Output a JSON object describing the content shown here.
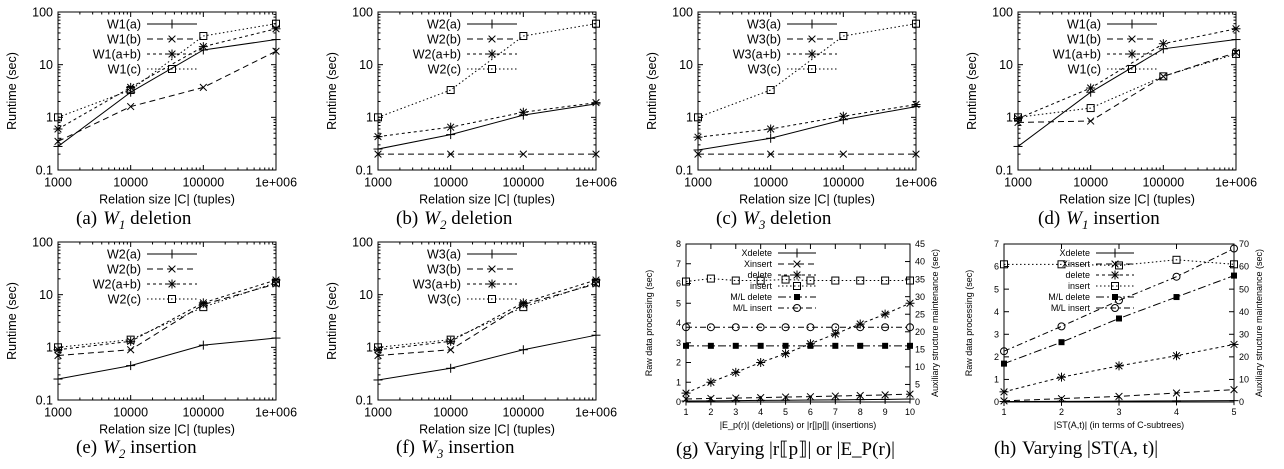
{
  "chart_data": [
    {
      "id": "a",
      "type": "line",
      "caption": {
        "label": "(a)",
        "var": "W",
        "sub": "1",
        "text": "deletion"
      },
      "xlabel": "Relation size |C| (tuples)",
      "ylabel": "Runtime (sec)",
      "xscale": "log",
      "yscale": "log",
      "xlim": [
        1000,
        1000000
      ],
      "ylim": [
        0.1,
        100
      ],
      "xticks": [
        "1000",
        "10000",
        "100000",
        "1e+006"
      ],
      "yticks": [
        "0.1",
        "1",
        "10",
        "100"
      ],
      "legend_position": "top-left",
      "x": [
        1000,
        10000,
        100000,
        1000000
      ],
      "series": [
        {
          "name": "W1(a)",
          "values": [
            0.28,
            3.0,
            19,
            30
          ]
        },
        {
          "name": "W1(b)",
          "values": [
            0.35,
            1.6,
            3.7,
            18
          ]
        },
        {
          "name": "W1(a+b)",
          "values": [
            0.6,
            3.7,
            22,
            48
          ]
        },
        {
          "name": "W1(c)",
          "values": [
            1.0,
            3.3,
            35,
            60
          ]
        }
      ]
    },
    {
      "id": "b",
      "type": "line",
      "caption": {
        "label": "(b)",
        "var": "W",
        "sub": "2",
        "text": "deletion"
      },
      "xlabel": "Relation size |C| (tuples)",
      "ylabel": "Runtime (sec)",
      "xscale": "log",
      "yscale": "log",
      "xlim": [
        1000,
        1000000
      ],
      "ylim": [
        0.1,
        100
      ],
      "xticks": [
        "1000",
        "10000",
        "100000",
        "1e+006"
      ],
      "yticks": [
        "0.1",
        "1",
        "10",
        "100"
      ],
      "legend_position": "top-left",
      "x": [
        1000,
        10000,
        100000,
        1000000
      ],
      "series": [
        {
          "name": "W2(a)",
          "values": [
            0.25,
            0.47,
            1.1,
            1.8
          ]
        },
        {
          "name": "W2(b)",
          "values": [
            0.2,
            0.2,
            0.2,
            0.2
          ]
        },
        {
          "name": "W2(a+b)",
          "values": [
            0.43,
            0.65,
            1.25,
            1.9
          ]
        },
        {
          "name": "W2(c)",
          "values": [
            1.0,
            3.3,
            35,
            60
          ]
        }
      ]
    },
    {
      "id": "c",
      "type": "line",
      "caption": {
        "label": "(c)",
        "var": "W",
        "sub": "3",
        "text": "deletion"
      },
      "xlabel": "Relation size |C| (tuples)",
      "ylabel": "Runtime (sec)",
      "xscale": "log",
      "yscale": "log",
      "xlim": [
        1000,
        1000000
      ],
      "ylim": [
        0.1,
        100
      ],
      "xticks": [
        "1000",
        "10000",
        "100000",
        "1e+006"
      ],
      "yticks": [
        "0.1",
        "1",
        "10",
        "100"
      ],
      "legend_position": "top-left",
      "x": [
        1000,
        10000,
        100000,
        1000000
      ],
      "series": [
        {
          "name": "W3(a)",
          "values": [
            0.24,
            0.4,
            0.9,
            1.6
          ]
        },
        {
          "name": "W3(b)",
          "values": [
            0.2,
            0.2,
            0.2,
            0.2
          ]
        },
        {
          "name": "W3(a+b)",
          "values": [
            0.42,
            0.6,
            1.05,
            1.75
          ]
        },
        {
          "name": "W3(c)",
          "values": [
            1.0,
            3.3,
            35,
            60
          ]
        }
      ]
    },
    {
      "id": "d",
      "type": "line",
      "caption": {
        "label": "(d)",
        "var": "W",
        "sub": "1",
        "text": "insertion"
      },
      "xlabel": "Relation size |C| (tuples)",
      "ylabel": "Runtime (sec)",
      "xscale": "log",
      "yscale": "log",
      "xlim": [
        1000,
        1000000
      ],
      "ylim": [
        0.1,
        100
      ],
      "xticks": [
        "1000",
        "10000",
        "100000",
        "1e+006"
      ],
      "yticks": [
        "0.1",
        "1",
        "10",
        "100"
      ],
      "legend_position": "top-left",
      "x": [
        1000,
        10000,
        100000,
        1000000
      ],
      "series": [
        {
          "name": "W1(a)",
          "values": [
            0.28,
            3.0,
            20,
            30
          ]
        },
        {
          "name": "W1(b)",
          "values": [
            0.8,
            0.85,
            6,
            17
          ]
        },
        {
          "name": "W1(a+b)",
          "values": [
            0.95,
            3.6,
            25,
            48
          ]
        },
        {
          "name": "W1(c)",
          "values": [
            1.0,
            1.5,
            6,
            16
          ]
        }
      ]
    },
    {
      "id": "e",
      "type": "line",
      "caption": {
        "label": "(e)",
        "var": "W",
        "sub": "2",
        "text": "insertion"
      },
      "xlabel": "Relation size |C| (tuples)",
      "ylabel": "Runtime (sec)",
      "xscale": "log",
      "yscale": "log",
      "xlim": [
        1000,
        1000000
      ],
      "ylim": [
        0.1,
        100
      ],
      "xticks": [
        "1000",
        "10000",
        "100000",
        "1e+006"
      ],
      "yticks": [
        "0.1",
        "1",
        "10",
        "100"
      ],
      "legend_position": "top-left",
      "x": [
        1000,
        10000,
        100000,
        1000000
      ],
      "series": [
        {
          "name": "W2(a)",
          "values": [
            0.25,
            0.45,
            1.1,
            1.5
          ]
        },
        {
          "name": "W2(b)",
          "values": [
            0.7,
            0.9,
            6.5,
            16
          ]
        },
        {
          "name": "W2(a+b)",
          "values": [
            0.9,
            1.3,
            7,
            19
          ]
        },
        {
          "name": "W2(c)",
          "values": [
            1.0,
            1.4,
            5.8,
            17
          ]
        }
      ]
    },
    {
      "id": "f",
      "type": "line",
      "caption": {
        "label": "(f)",
        "var": "W",
        "sub": "3",
        "text": "insertion"
      },
      "xlabel": "Relation size |C| (tuples)",
      "ylabel": "Runtime (sec)",
      "xscale": "log",
      "yscale": "log",
      "xlim": [
        1000,
        1000000
      ],
      "ylim": [
        0.1,
        100
      ],
      "xticks": [
        "1000",
        "10000",
        "100000",
        "1e+006"
      ],
      "yticks": [
        "0.1",
        "1",
        "10",
        "100"
      ],
      "legend_position": "top-left",
      "x": [
        1000,
        10000,
        100000,
        1000000
      ],
      "series": [
        {
          "name": "W3(a)",
          "values": [
            0.24,
            0.4,
            0.9,
            1.7
          ]
        },
        {
          "name": "W3(b)",
          "values": [
            0.7,
            0.9,
            6.5,
            16
          ]
        },
        {
          "name": "W3(a+b)",
          "values": [
            0.9,
            1.3,
            7,
            19
          ]
        },
        {
          "name": "W3(c)",
          "values": [
            1.0,
            1.4,
            5.8,
            17
          ]
        }
      ]
    },
    {
      "id": "g",
      "type": "line",
      "caption": {
        "label": "(g)",
        "text": "Varying |r⟦p⟧| or |E_P(r)|"
      },
      "xlabel": "|E_p(r)| (deletions) or |r[|p|]| (insertions)",
      "ylabel": "Raw data processing (sec)",
      "ylabel2": "Auxiliary structure maintenance (sec)",
      "xlim": [
        1,
        10
      ],
      "ylim": [
        0,
        8
      ],
      "y2lim": [
        0,
        45
      ],
      "xticks": [
        "1",
        "2",
        "3",
        "4",
        "5",
        "6",
        "7",
        "8",
        "9",
        "10"
      ],
      "yticks": [
        "0",
        "1",
        "2",
        "3",
        "4",
        "5",
        "6",
        "7",
        "8"
      ],
      "y2ticks": [
        "0",
        "5",
        "10",
        "15",
        "20",
        "25",
        "30",
        "35",
        "40",
        "45"
      ],
      "legend_position": "top-left",
      "x": [
        1,
        2,
        3,
        4,
        5,
        6,
        7,
        8,
        9,
        10
      ],
      "series": [
        {
          "name": "Xdelete",
          "axis": "left",
          "values": [
            0.05,
            0.06,
            0.07,
            0.08,
            0.09,
            0.1,
            0.11,
            0.12,
            0.13,
            0.15
          ]
        },
        {
          "name": "Xinsert",
          "axis": "left",
          "values": [
            0.15,
            0.18,
            0.2,
            0.22,
            0.25,
            0.27,
            0.3,
            0.33,
            0.36,
            0.4
          ]
        },
        {
          "name": "delete",
          "axis": "left",
          "values": [
            0.45,
            1.0,
            1.5,
            2.0,
            2.45,
            2.95,
            3.45,
            3.95,
            4.45,
            5.0
          ]
        },
        {
          "name": "insert",
          "axis": "left",
          "values": [
            6.1,
            6.25,
            6.15,
            6.15,
            6.2,
            6.15,
            6.15,
            6.15,
            6.15,
            6.15
          ]
        },
        {
          "name": "M/L delete",
          "axis": "right",
          "values": [
            16,
            16,
            16,
            16,
            16,
            16,
            16,
            16,
            16,
            16
          ]
        },
        {
          "name": "M/L insert",
          "axis": "right",
          "values": [
            21.3,
            21.3,
            21.3,
            21.3,
            21.3,
            21.3,
            21.3,
            21.3,
            21.3,
            21.3
          ]
        }
      ]
    },
    {
      "id": "h",
      "type": "line",
      "caption": {
        "label": "(h)",
        "text": "Varying |ST(A, t)|"
      },
      "xlabel": "|ST(A,t)| (in terms of C-subtrees)",
      "ylabel": "Raw data processing (sec)",
      "ylabel2": "Auxiliary structure maintenance (sec)",
      "xlim": [
        1,
        5
      ],
      "ylim": [
        0,
        7
      ],
      "y2lim": [
        0,
        70
      ],
      "xticks": [
        "1",
        "2",
        "3",
        "4",
        "5"
      ],
      "yticks": [
        "0",
        "1",
        "2",
        "3",
        "4",
        "5",
        "6",
        "7"
      ],
      "y2ticks": [
        "0",
        "10",
        "20",
        "30",
        "40",
        "50",
        "60",
        "70"
      ],
      "legend_position": "top-left",
      "x": [
        1,
        2,
        3,
        4,
        5
      ],
      "series": [
        {
          "name": "Xdelete",
          "axis": "left",
          "values": [
            0.02,
            0.03,
            0.04,
            0.05,
            0.06
          ]
        },
        {
          "name": "Xinsert",
          "axis": "left",
          "values": [
            0.05,
            0.15,
            0.25,
            0.4,
            0.55
          ]
        },
        {
          "name": "delete",
          "axis": "left",
          "values": [
            0.45,
            1.1,
            1.6,
            2.05,
            2.55
          ]
        },
        {
          "name": "insert",
          "axis": "left",
          "values": [
            6.1,
            6.1,
            6.05,
            6.3,
            6.1
          ]
        },
        {
          "name": "M/L delete",
          "axis": "right",
          "values": [
            17,
            26.5,
            37,
            46.5,
            56
          ]
        },
        {
          "name": "M/L insert",
          "axis": "right",
          "values": [
            22.5,
            33.5,
            45,
            55.5,
            68
          ]
        }
      ]
    }
  ]
}
